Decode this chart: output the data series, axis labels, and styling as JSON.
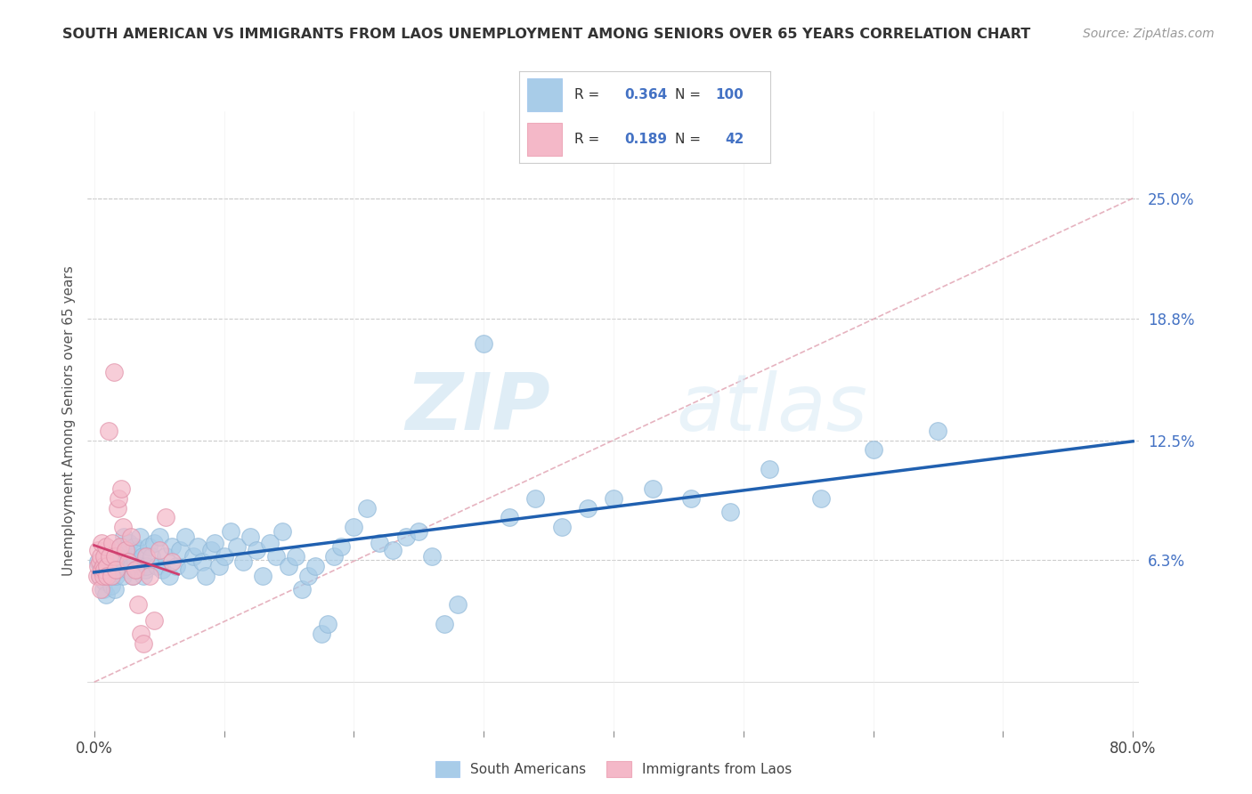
{
  "title": "SOUTH AMERICAN VS IMMIGRANTS FROM LAOS UNEMPLOYMENT AMONG SENIORS OVER 65 YEARS CORRELATION CHART",
  "source": "Source: ZipAtlas.com",
  "ylabel": "Unemployment Among Seniors over 65 years",
  "xlim": [
    -0.005,
    0.805
  ],
  "ylim": [
    -0.025,
    0.295
  ],
  "right_yticks": [
    0.063,
    0.125,
    0.188,
    0.25
  ],
  "right_yticklabels": [
    "6.3%",
    "12.5%",
    "18.8%",
    "25.0%"
  ],
  "background_color": "#ffffff",
  "watermark_zip": "ZIP",
  "watermark_atlas": "atlas",
  "legend_R_blue": "0.364",
  "legend_N_blue": "100",
  "legend_R_pink": "0.189",
  "legend_N_pink": "42",
  "blue_scatter": "#a8cce8",
  "pink_scatter": "#f4b8c8",
  "line_blue": "#2060b0",
  "line_pink": "#d04070",
  "line_dashed_color": "#e0a0b0",
  "south_american_x": [
    0.003,
    0.004,
    0.005,
    0.006,
    0.007,
    0.008,
    0.009,
    0.01,
    0.01,
    0.011,
    0.012,
    0.013,
    0.014,
    0.015,
    0.016,
    0.017,
    0.018,
    0.019,
    0.02,
    0.021,
    0.022,
    0.023,
    0.024,
    0.025,
    0.026,
    0.027,
    0.028,
    0.029,
    0.03,
    0.031,
    0.032,
    0.033,
    0.034,
    0.035,
    0.036,
    0.037,
    0.038,
    0.039,
    0.04,
    0.042,
    0.044,
    0.046,
    0.048,
    0.05,
    0.052,
    0.055,
    0.058,
    0.06,
    0.063,
    0.066,
    0.07,
    0.073,
    0.076,
    0.08,
    0.083,
    0.086,
    0.09,
    0.093,
    0.096,
    0.1,
    0.105,
    0.11,
    0.115,
    0.12,
    0.125,
    0.13,
    0.135,
    0.14,
    0.145,
    0.15,
    0.155,
    0.16,
    0.165,
    0.17,
    0.175,
    0.18,
    0.185,
    0.19,
    0.2,
    0.21,
    0.22,
    0.23,
    0.24,
    0.25,
    0.26,
    0.27,
    0.28,
    0.3,
    0.32,
    0.34,
    0.36,
    0.38,
    0.4,
    0.43,
    0.46,
    0.49,
    0.52,
    0.56,
    0.6,
    0.65
  ],
  "south_american_y": [
    0.062,
    0.055,
    0.058,
    0.06,
    0.048,
    0.052,
    0.045,
    0.06,
    0.055,
    0.058,
    0.065,
    0.05,
    0.055,
    0.062,
    0.048,
    0.055,
    0.06,
    0.058,
    0.065,
    0.07,
    0.055,
    0.075,
    0.06,
    0.068,
    0.058,
    0.072,
    0.065,
    0.06,
    0.055,
    0.07,
    0.062,
    0.068,
    0.058,
    0.075,
    0.06,
    0.065,
    0.055,
    0.058,
    0.06,
    0.07,
    0.065,
    0.072,
    0.06,
    0.075,
    0.058,
    0.065,
    0.055,
    0.07,
    0.06,
    0.068,
    0.075,
    0.058,
    0.065,
    0.07,
    0.062,
    0.055,
    0.068,
    0.072,
    0.06,
    0.065,
    0.078,
    0.07,
    0.062,
    0.075,
    0.068,
    0.055,
    0.072,
    0.065,
    0.078,
    0.06,
    0.065,
    0.048,
    0.055,
    0.06,
    0.025,
    0.03,
    0.065,
    0.07,
    0.08,
    0.09,
    0.072,
    0.068,
    0.075,
    0.078,
    0.065,
    0.03,
    0.04,
    0.175,
    0.085,
    0.095,
    0.08,
    0.09,
    0.095,
    0.1,
    0.095,
    0.088,
    0.11,
    0.095,
    0.12,
    0.13
  ],
  "laos_x": [
    0.002,
    0.003,
    0.003,
    0.004,
    0.004,
    0.005,
    0.005,
    0.006,
    0.006,
    0.007,
    0.007,
    0.008,
    0.008,
    0.009,
    0.01,
    0.01,
    0.011,
    0.012,
    0.013,
    0.014,
    0.015,
    0.016,
    0.017,
    0.018,
    0.019,
    0.02,
    0.021,
    0.022,
    0.024,
    0.026,
    0.028,
    0.03,
    0.032,
    0.034,
    0.036,
    0.038,
    0.04,
    0.043,
    0.046,
    0.05,
    0.055,
    0.06
  ],
  "laos_y": [
    0.055,
    0.06,
    0.068,
    0.055,
    0.062,
    0.048,
    0.065,
    0.058,
    0.072,
    0.055,
    0.06,
    0.065,
    0.058,
    0.07,
    0.06,
    0.055,
    0.13,
    0.065,
    0.055,
    0.072,
    0.16,
    0.065,
    0.058,
    0.09,
    0.095,
    0.07,
    0.1,
    0.08,
    0.068,
    0.062,
    0.075,
    0.055,
    0.058,
    0.04,
    0.025,
    0.02,
    0.065,
    0.055,
    0.032,
    0.068,
    0.085,
    0.062
  ]
}
